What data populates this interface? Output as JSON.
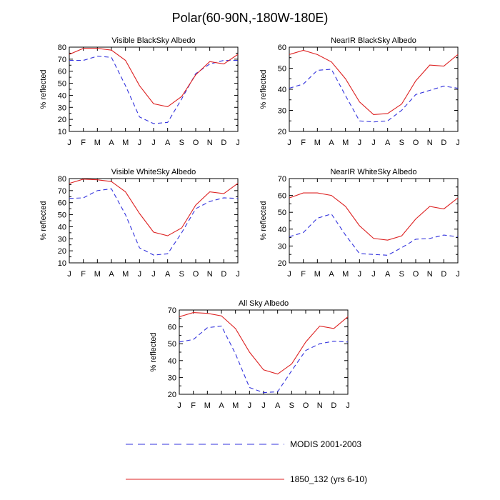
{
  "title": "Polar(60-90N,-180W-180E)",
  "colors": {
    "modis": "#3333dd",
    "model": "#dd2222"
  },
  "legend": [
    {
      "key": "modis",
      "label": "MODIS 2001-2003",
      "style": "dashed"
    },
    {
      "key": "model",
      "label": "1850_132 (yrs 6-10)",
      "style": "solid"
    }
  ],
  "chart_data": [
    {
      "type": "line",
      "title": "Visible BlackSky Albedo",
      "ylabel": "% reflected",
      "categories": [
        "J",
        "F",
        "M",
        "A",
        "M",
        "J",
        "J",
        "A",
        "S",
        "O",
        "N",
        "D",
        "J"
      ],
      "ylim": [
        10,
        80
      ],
      "yticks": [
        10,
        20,
        30,
        40,
        50,
        60,
        70,
        80
      ],
      "series": [
        {
          "name": "MODIS 2001-2003",
          "key": "modis",
          "values": [
            69,
            69,
            72.5,
            71.5,
            48,
            22,
            16.5,
            17.5,
            37,
            58,
            66,
            69,
            69
          ]
        },
        {
          "name": "1850_132 (yrs 6-10)",
          "key": "model",
          "values": [
            74,
            79,
            79,
            77.5,
            69,
            48,
            33,
            30.5,
            39,
            57,
            68,
            66,
            74
          ]
        }
      ]
    },
    {
      "type": "line",
      "title": "NearIR BlackSky Albedo",
      "ylabel": "% reflected",
      "categories": [
        "J",
        "F",
        "M",
        "A",
        "M",
        "J",
        "J",
        "A",
        "S",
        "O",
        "N",
        "D",
        "J"
      ],
      "ylim": [
        20,
        60
      ],
      "yticks": [
        20,
        30,
        40,
        50,
        60
      ],
      "series": [
        {
          "name": "MODIS 2001-2003",
          "key": "modis",
          "values": [
            40.5,
            42.5,
            49,
            49.5,
            37,
            25,
            24.5,
            25,
            30,
            37.5,
            39.5,
            41.5,
            40.5
          ]
        },
        {
          "name": "1850_132 (yrs 6-10)",
          "key": "model",
          "values": [
            56.5,
            58.5,
            56.5,
            53,
            45,
            34,
            28,
            28.5,
            33,
            44,
            51.5,
            51,
            56.5
          ]
        }
      ]
    },
    {
      "type": "line",
      "title": "Visible WhiteSky Albedo",
      "ylabel": "% reflected",
      "categories": [
        "J",
        "F",
        "M",
        "A",
        "M",
        "J",
        "J",
        "A",
        "S",
        "O",
        "N",
        "D",
        "J"
      ],
      "ylim": [
        10,
        80
      ],
      "yticks": [
        10,
        20,
        30,
        40,
        50,
        60,
        70,
        80
      ],
      "series": [
        {
          "name": "MODIS 2001-2003",
          "key": "modis",
          "values": [
            63.5,
            64,
            70,
            71.5,
            50,
            22.5,
            16.5,
            17.5,
            35,
            55,
            61,
            64,
            63.5
          ]
        },
        {
          "name": "1850_132 (yrs 6-10)",
          "key": "model",
          "values": [
            76,
            79.5,
            79,
            77.5,
            69,
            51,
            35.5,
            32.5,
            39,
            58,
            69,
            67.5,
            76
          ]
        }
      ]
    },
    {
      "type": "line",
      "title": "NearIR WhiteSky Albedo",
      "ylabel": "% reflected",
      "categories": [
        "J",
        "F",
        "M",
        "A",
        "M",
        "J",
        "J",
        "A",
        "S",
        "O",
        "N",
        "D",
        "J"
      ],
      "ylim": [
        20,
        70
      ],
      "yticks": [
        20,
        30,
        40,
        50,
        60,
        70
      ],
      "series": [
        {
          "name": "MODIS 2001-2003",
          "key": "modis",
          "values": [
            35.5,
            38,
            46.5,
            49,
            36.5,
            25.5,
            25,
            24.5,
            29,
            34,
            34.5,
            36.5,
            35.5
          ]
        },
        {
          "name": "1850_132 (yrs 6-10)",
          "key": "model",
          "values": [
            58.5,
            61.5,
            61.5,
            60,
            53.5,
            42,
            34.5,
            33.5,
            36,
            46,
            53.5,
            52,
            58.5
          ]
        }
      ]
    },
    {
      "type": "line",
      "title": "All Sky Albedo",
      "ylabel": "% reflected",
      "categories": [
        "J",
        "F",
        "M",
        "A",
        "M",
        "J",
        "J",
        "A",
        "S",
        "O",
        "N",
        "D",
        "J"
      ],
      "ylim": [
        20,
        70
      ],
      "yticks": [
        20,
        30,
        40,
        50,
        60,
        70
      ],
      "series": [
        {
          "name": "MODIS 2001-2003",
          "key": "modis",
          "values": [
            51,
            52.5,
            59.5,
            60.5,
            44,
            24,
            21,
            21.5,
            34,
            46,
            50,
            51.5,
            51
          ]
        },
        {
          "name": "1850_132 (yrs 6-10)",
          "key": "model",
          "values": [
            66,
            68.5,
            68,
            66.5,
            59,
            45,
            34.5,
            32,
            38,
            51,
            60.5,
            59,
            66
          ]
        }
      ]
    }
  ]
}
